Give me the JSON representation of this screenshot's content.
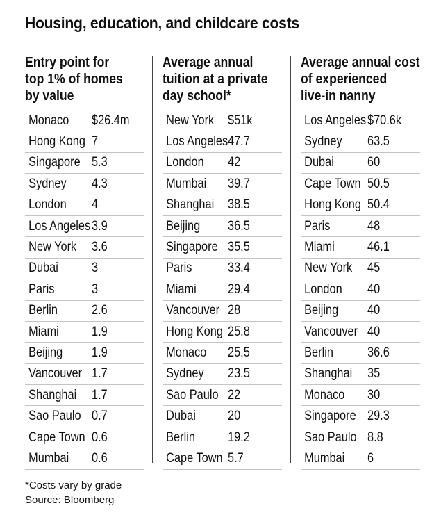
{
  "title": "Housing, education, and childcare costs",
  "footnote": "*Costs vary by grade",
  "source": "Source: Bloomberg",
  "chart_data": {
    "type": "table",
    "title": "Housing, education, and childcare costs",
    "tables": [
      {
        "header": "Entry point for top 1% of homes by value",
        "header_lines": [
          "Entry point for",
          "top 1% of homes",
          "by value"
        ],
        "rows": [
          {
            "city": "Monaco",
            "display": "$26.4m",
            "value": 26.4
          },
          {
            "city": "Hong Kong",
            "display": "7",
            "value": 7
          },
          {
            "city": "Singapore",
            "display": "5.3",
            "value": 5.3
          },
          {
            "city": "Sydney",
            "display": "4.3",
            "value": 4.3
          },
          {
            "city": "London",
            "display": "4",
            "value": 4
          },
          {
            "city": "Los Angeles",
            "display": "3.9",
            "value": 3.9
          },
          {
            "city": "New York",
            "display": "3.6",
            "value": 3.6
          },
          {
            "city": "Dubai",
            "display": "3",
            "value": 3
          },
          {
            "city": "Paris",
            "display": "3",
            "value": 3
          },
          {
            "city": "Berlin",
            "display": "2.6",
            "value": 2.6
          },
          {
            "city": "Miami",
            "display": "1.9",
            "value": 1.9
          },
          {
            "city": "Beijing",
            "display": "1.9",
            "value": 1.9
          },
          {
            "city": "Vancouver",
            "display": "1.7",
            "value": 1.7
          },
          {
            "city": "Shanghai",
            "display": "1.7",
            "value": 1.7
          },
          {
            "city": "Sao Paulo",
            "display": "0.7",
            "value": 0.7
          },
          {
            "city": "Cape Town",
            "display": "0.6",
            "value": 0.6
          },
          {
            "city": "Mumbai",
            "display": "0.6",
            "value": 0.6
          }
        ]
      },
      {
        "header": "Average annual tuition at a private day school*",
        "header_lines": [
          "Average annual",
          "tuition at a private",
          "day school*"
        ],
        "rows": [
          {
            "city": "New York",
            "display": "$51k",
            "value": 51
          },
          {
            "city": "Los Angeles",
            "display": "47.7",
            "value": 47.7
          },
          {
            "city": "London",
            "display": "42",
            "value": 42
          },
          {
            "city": "Mumbai",
            "display": "39.7",
            "value": 39.7
          },
          {
            "city": "Shanghai",
            "display": "38.5",
            "value": 38.5
          },
          {
            "city": "Beijing",
            "display": "36.5",
            "value": 36.5
          },
          {
            "city": "Singapore",
            "display": "35.5",
            "value": 35.5
          },
          {
            "city": "Paris",
            "display": "33.4",
            "value": 33.4
          },
          {
            "city": "Miami",
            "display": "29.4",
            "value": 29.4
          },
          {
            "city": "Vancouver",
            "display": "28",
            "value": 28
          },
          {
            "city": "Hong Kong",
            "display": "25.8",
            "value": 25.8
          },
          {
            "city": "Monaco",
            "display": "25.5",
            "value": 25.5
          },
          {
            "city": "Sydney",
            "display": "23.5",
            "value": 23.5
          },
          {
            "city": "Sao Paulo",
            "display": "22",
            "value": 22
          },
          {
            "city": "Dubai",
            "display": "20",
            "value": 20
          },
          {
            "city": "Berlin",
            "display": "19.2",
            "value": 19.2
          },
          {
            "city": "Cape Town",
            "display": "5.7",
            "value": 5.7
          }
        ]
      },
      {
        "header": "Average annual cost of experienced live-in nanny",
        "header_lines": [
          "Average annual cost",
          "of experienced",
          "live-in nanny"
        ],
        "rows": [
          {
            "city": "Los Angeles",
            "display": "$70.6k",
            "value": 70.6
          },
          {
            "city": "Sydney",
            "display": "63.5",
            "value": 63.5
          },
          {
            "city": "Dubai",
            "display": "60",
            "value": 60
          },
          {
            "city": "Cape Town",
            "display": "50.5",
            "value": 50.5
          },
          {
            "city": "Hong Kong",
            "display": "50.4",
            "value": 50.4
          },
          {
            "city": "Paris",
            "display": "48",
            "value": 48
          },
          {
            "city": "Miami",
            "display": "46.1",
            "value": 46.1
          },
          {
            "city": "New York",
            "display": "45",
            "value": 45
          },
          {
            "city": "London",
            "display": "40",
            "value": 40
          },
          {
            "city": "Beijing",
            "display": "40",
            "value": 40
          },
          {
            "city": "Vancouver",
            "display": "40",
            "value": 40
          },
          {
            "city": "Berlin",
            "display": "36.6",
            "value": 36.6
          },
          {
            "city": "Shanghai",
            "display": "35",
            "value": 35
          },
          {
            "city": "Monaco",
            "display": "30",
            "value": 30
          },
          {
            "city": "Singapore",
            "display": "29.3",
            "value": 29.3
          },
          {
            "city": "Sao Paulo",
            "display": "8.8",
            "value": 8.8
          },
          {
            "city": "Mumbai",
            "display": "6",
            "value": 6
          }
        ]
      }
    ]
  }
}
